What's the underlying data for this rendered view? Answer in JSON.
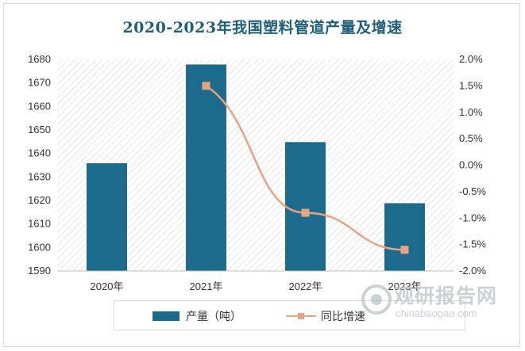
{
  "chart_data": {
    "type": "bar",
    "title": "2020-2023年我国塑料管道产量及增速",
    "categories": [
      "2020年",
      "2021年",
      "2022年",
      "2023年"
    ],
    "series": [
      {
        "name": "产量（吨）",
        "type": "bar",
        "axis": "left",
        "color": "#1d6b8c",
        "values": [
          1636,
          1678,
          1645,
          1619
        ]
      },
      {
        "name": "同比增速",
        "type": "line",
        "axis": "right",
        "color": "#e8a383",
        "values": [
          null,
          1.5,
          -0.9,
          -1.6
        ]
      }
    ],
    "y_left": {
      "min": 1590,
      "max": 1680,
      "step": 10,
      "ticks": [
        "1680",
        "1670",
        "1660",
        "1650",
        "1640",
        "1630",
        "1620",
        "1610",
        "1600",
        "1590"
      ]
    },
    "y_right": {
      "min": -2.0,
      "max": 2.0,
      "step": 0.5,
      "ticks": [
        "2.0%",
        "1.5%",
        "1.0%",
        "0.5%",
        "0.0%",
        "-0.5%",
        "-1.0%",
        "-1.5%",
        "-2.0%"
      ]
    },
    "legend_position": "bottom",
    "plot_background": "hatched"
  },
  "watermark": {
    "brand": "观研报告网",
    "url": "chinabaogao.com"
  }
}
